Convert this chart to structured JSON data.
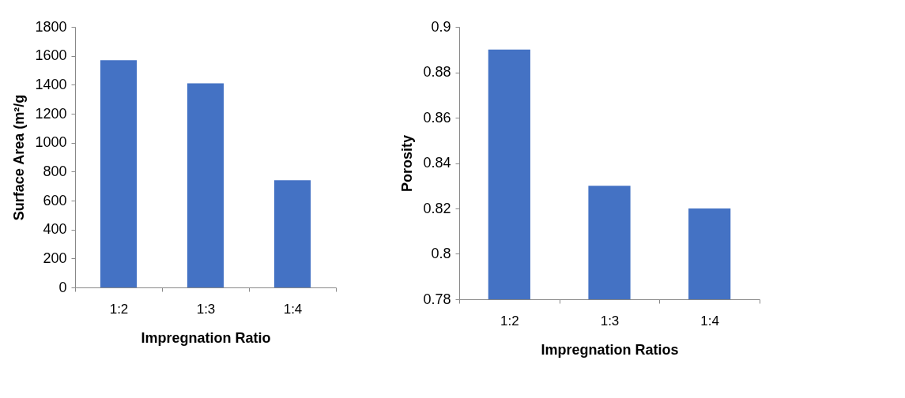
{
  "chart_data": [
    {
      "type": "bar",
      "xlabel": "Impregnation Ratio",
      "ylabel": "Surface Area (m²/g",
      "categories": [
        "1:2",
        "1:3",
        "1:4"
      ],
      "values": [
        1570,
        1410,
        740
      ],
      "color": "#4472c4",
      "ylim": [
        0,
        1800
      ],
      "yticks": [
        0,
        200,
        400,
        600,
        800,
        1000,
        1200,
        1400,
        1600,
        1800
      ],
      "grid": false
    },
    {
      "type": "bar",
      "xlabel": "Impregnation Ratios",
      "ylabel": "Porosity",
      "categories": [
        "1:2",
        "1:3",
        "1:4"
      ],
      "values": [
        0.89,
        0.83,
        0.82
      ],
      "color": "#4472c4",
      "ylim": [
        0.78,
        0.9
      ],
      "yticks": [
        0.78,
        0.8,
        0.82,
        0.84,
        0.86,
        0.88,
        0.9
      ],
      "grid": false
    }
  ]
}
